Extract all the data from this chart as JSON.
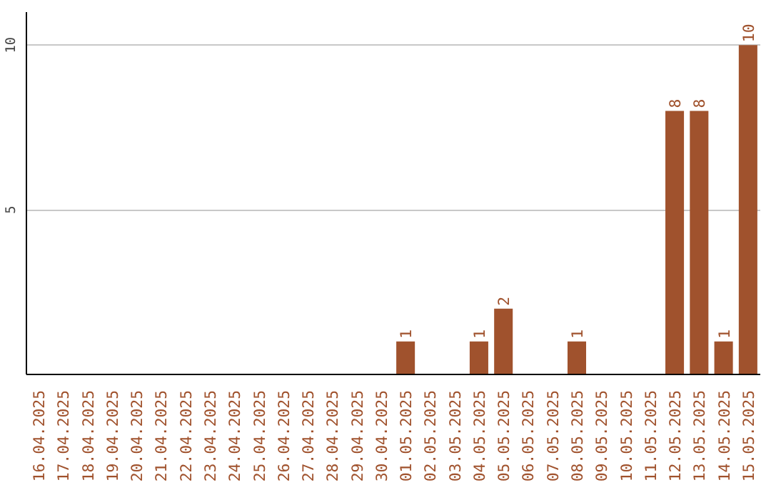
{
  "chart_data": {
    "type": "bar",
    "categories": [
      "16.04.2025",
      "17.04.2025",
      "18.04.2025",
      "19.04.2025",
      "20.04.2025",
      "21.04.2025",
      "22.04.2025",
      "23.04.2025",
      "24.04.2025",
      "25.04.2025",
      "26.04.2025",
      "27.04.2025",
      "28.04.2025",
      "29.04.2025",
      "30.04.2025",
      "01.05.2025",
      "02.05.2025",
      "03.05.2025",
      "04.05.2025",
      "05.05.2025",
      "06.05.2025",
      "07.05.2025",
      "08.05.2025",
      "09.05.2025",
      "10.05.2025",
      "11.05.2025",
      "12.05.2025",
      "13.05.2025",
      "14.05.2025",
      "15.05.2025"
    ],
    "values": [
      0,
      0,
      0,
      0,
      0,
      0,
      0,
      0,
      0,
      0,
      0,
      0,
      0,
      0,
      0,
      1,
      0,
      0,
      1,
      2,
      0,
      0,
      1,
      0,
      0,
      0,
      8,
      8,
      1,
      10
    ],
    "value_labels": [
      null,
      null,
      null,
      null,
      null,
      null,
      null,
      null,
      null,
      null,
      null,
      null,
      null,
      null,
      null,
      "1",
      null,
      null,
      "1",
      "2",
      null,
      null,
      "1",
      null,
      null,
      null,
      "8",
      "8",
      "1",
      "10"
    ],
    "color": "#a0522d",
    "ylim": [
      0,
      11
    ],
    "yticks": [
      5,
      10
    ],
    "grid": "y"
  }
}
